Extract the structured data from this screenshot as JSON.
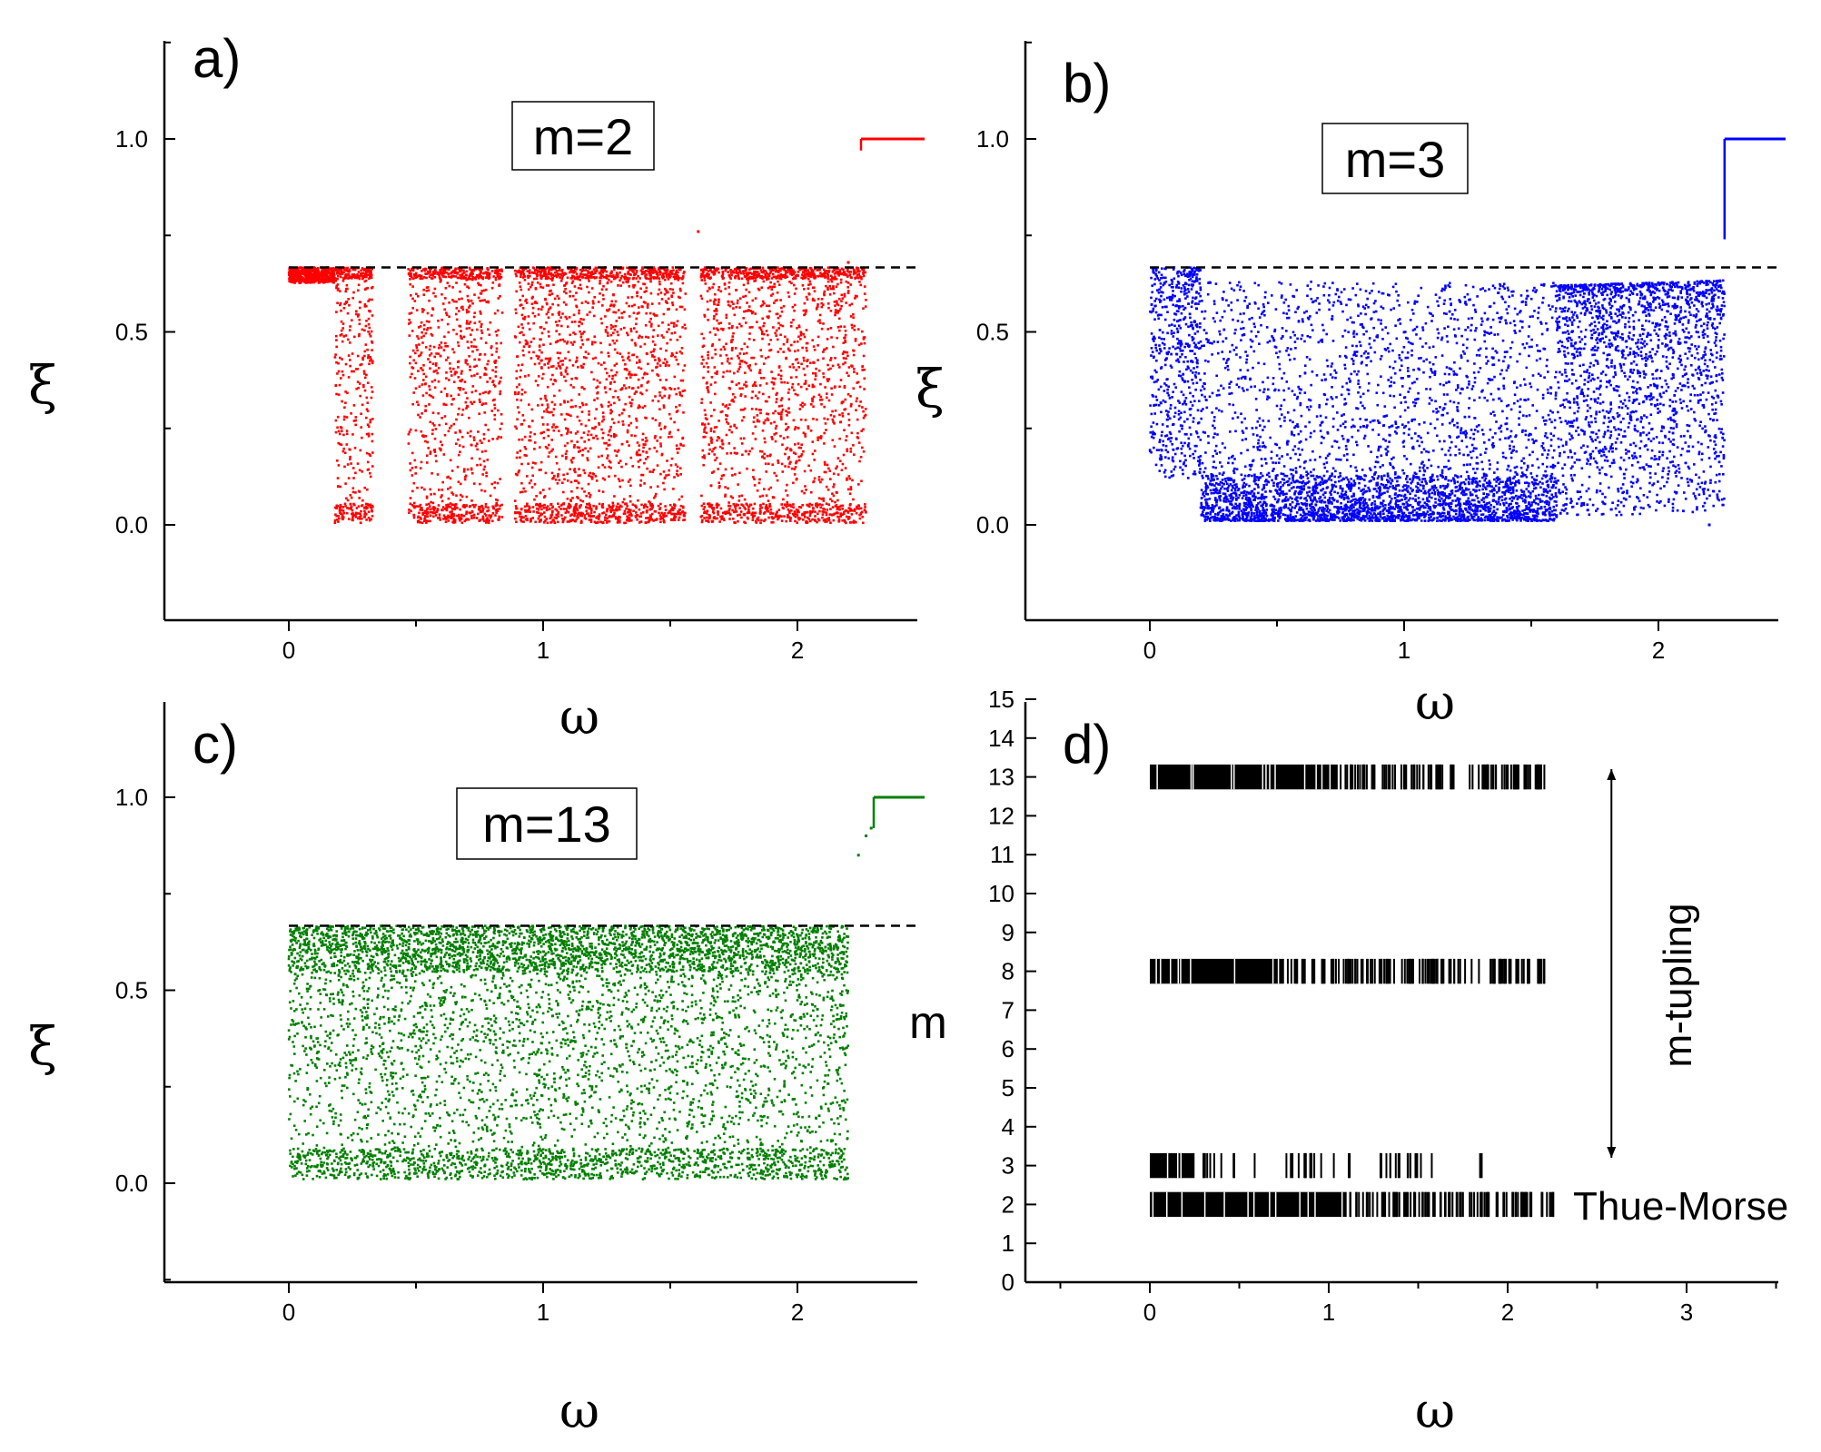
{
  "chart_data": [
    {
      "type": "scatter",
      "panel_label": "a)",
      "legend": "m=2",
      "color": "#ff0000",
      "xlabel": "ω",
      "ylabel": "ξ",
      "xlim": [
        -0.5,
        2.5
      ],
      "ylim": [
        -0.25,
        1.25
      ],
      "xticks": [
        "0",
        "1",
        "2"
      ],
      "yticks": [
        "0.0",
        "0.5",
        "1.0"
      ],
      "xtick_values": [
        0,
        1,
        2
      ],
      "ytick_values": [
        0,
        0.5,
        1.0
      ],
      "reference_line": 0.667,
      "scatter_range": [
        0.0,
        2.27
      ],
      "gaps": [
        [
          0.33,
          0.47
        ],
        [
          0.84,
          0.89
        ],
        [
          1.56,
          1.62
        ]
      ],
      "stub": {
        "x": [
          2.25,
          2.5
        ],
        "y": 1.0,
        "riser_from": 0.97
      },
      "outlier_points": [
        [
          1.61,
          0.76
        ],
        [
          2.2,
          0.68
        ]
      ]
    },
    {
      "type": "scatter",
      "panel_label": "b)",
      "legend": "m=3",
      "color": "#0000ff",
      "xlabel": "ω",
      "ylabel": "ξ",
      "xlim": [
        -0.5,
        2.5
      ],
      "ylim": [
        -0.25,
        1.25
      ],
      "xticks": [
        "0",
        "1",
        "2"
      ],
      "yticks": [
        "0.0",
        "0.5",
        "1.0"
      ],
      "xtick_values": [
        0,
        1,
        2
      ],
      "ytick_values": [
        0,
        0.5,
        1.0
      ],
      "reference_line": 0.667,
      "scatter_range": [
        0.0,
        2.26
      ],
      "gaps": [],
      "stub": {
        "x": [
          2.26,
          2.5
        ],
        "y": 1.0,
        "riser_from": 0.74
      },
      "outlier_points": [
        [
          2.2,
          0.0
        ]
      ]
    },
    {
      "type": "scatter",
      "panel_label": "c)",
      "legend": "m=13",
      "color": "#008000",
      "xlabel": "ω",
      "ylabel": "ξ",
      "xlim": [
        -0.5,
        2.5
      ],
      "ylim": [
        -0.25,
        1.25
      ],
      "xticks": [
        "0",
        "1",
        "2"
      ],
      "yticks": [
        "0.0",
        "0.5",
        "1.0"
      ],
      "xtick_values": [
        0,
        1,
        2
      ],
      "ytick_values": [
        0,
        0.5,
        1.0
      ],
      "reference_line": 0.667,
      "scatter_range": [
        0.0,
        2.2
      ],
      "gaps": [],
      "stub": {
        "x": [
          2.3,
          2.5
        ],
        "y": 1.0,
        "riser_from": 0.92
      },
      "outlier_points": [
        [
          2.24,
          0.85
        ],
        [
          2.27,
          0.9
        ],
        [
          2.29,
          0.92
        ]
      ]
    },
    {
      "type": "spectrum",
      "panel_label": "d)",
      "xlabel": "ω",
      "ylabel": "m",
      "xlim": [
        -0.65,
        3.5
      ],
      "ylim": [
        0,
        15
      ],
      "xticks": [
        "0",
        "1",
        "2",
        "3"
      ],
      "yticks": [
        "0",
        "1",
        "2",
        "3",
        "4",
        "5",
        "6",
        "7",
        "8",
        "9",
        "10",
        "11",
        "12",
        "13",
        "14",
        "15"
      ],
      "xtick_values": [
        0,
        1,
        2,
        3
      ],
      "ytick_values": [
        0,
        1,
        2,
        3,
        4,
        5,
        6,
        7,
        8,
        9,
        10,
        11,
        12,
        13,
        14,
        15
      ],
      "rows": [
        {
          "m": 2,
          "dense_until": 1.1,
          "extent": 2.25
        },
        {
          "m": 3,
          "dense_until": 0.25,
          "extent": 1.85
        },
        {
          "m": 8,
          "dense_until": 0.75,
          "extent": 2.2
        },
        {
          "m": 13,
          "dense_until": 1.05,
          "extent": 2.2
        }
      ],
      "arrow": {
        "x": 2.58,
        "from_m": 3.2,
        "to_m": 13.2
      },
      "annotations": {
        "vertical": "m-tupling",
        "right_of_row_2": "Thue-Morse"
      }
    }
  ]
}
